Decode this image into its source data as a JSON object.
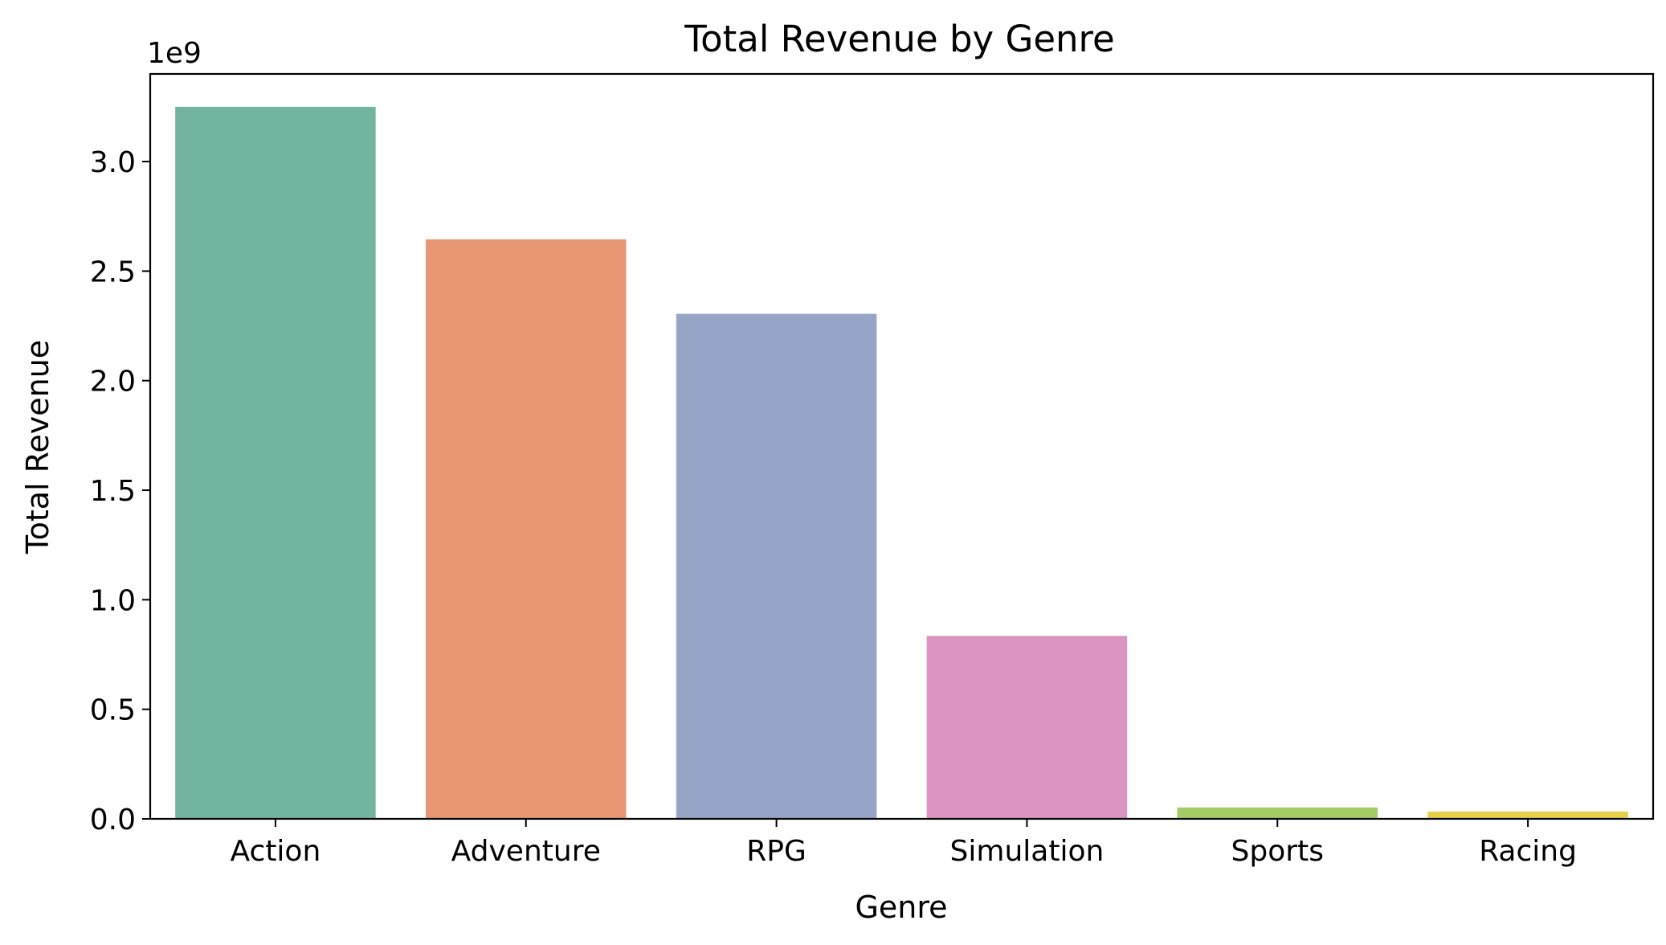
{
  "chart_data": {
    "type": "bar",
    "title": "Total Revenue by Genre",
    "xlabel": "Genre",
    "ylabel": "Total Revenue",
    "y_offset_label": "1e9",
    "categories": [
      "Action",
      "Adventure",
      "RPG",
      "Simulation",
      "Sports",
      "Racing"
    ],
    "values": [
      3.25,
      2.645,
      2.305,
      0.835,
      0.052,
      0.033
    ],
    "ylim": [
      0,
      3.4
    ],
    "yticks": [
      0.0,
      0.5,
      1.0,
      1.5,
      2.0,
      2.5,
      3.0
    ],
    "ytick_labels": [
      "0.0",
      "0.5",
      "1.0",
      "1.5",
      "2.0",
      "2.5",
      "3.0"
    ],
    "colors": [
      "#73b4a0",
      "#e89775",
      "#96a5c5",
      "#da95c0",
      "#a4cb64",
      "#e7d049"
    ],
    "grid": false,
    "legend": "none"
  }
}
